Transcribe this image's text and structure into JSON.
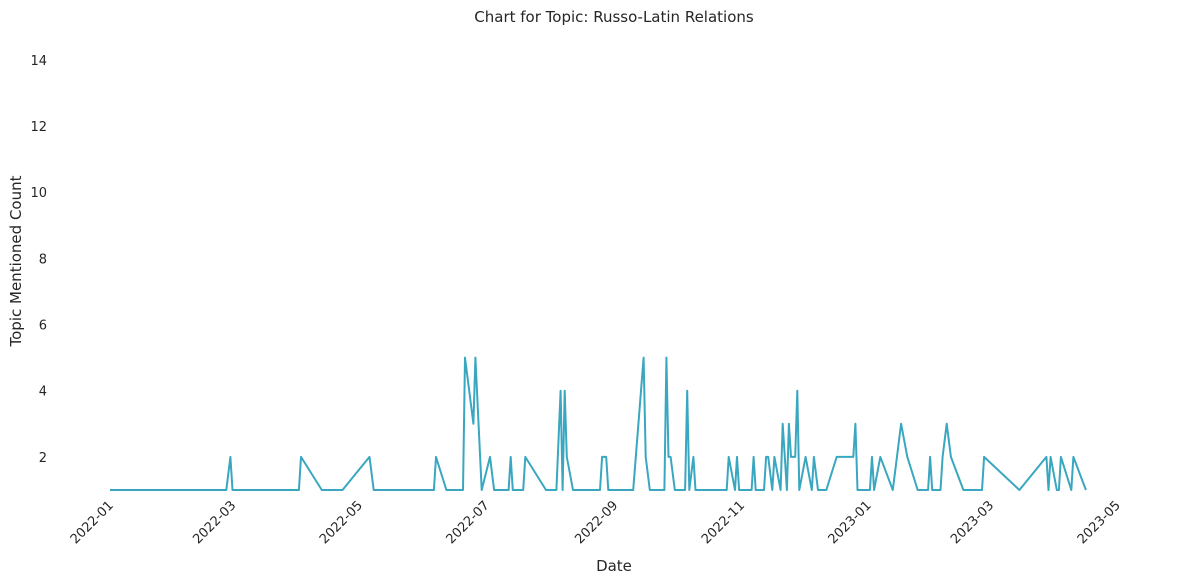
{
  "chart_data": {
    "type": "line",
    "title": "Chart for Topic: Russo-Latin Relations",
    "xlabel": "Date",
    "ylabel": "Topic Mentioned Count",
    "xlim": [
      "2022-01-01",
      "2023-05-01"
    ],
    "ylim": [
      1,
      14.6
    ],
    "grid": false,
    "x_ticks": [
      "2022-01",
      "2022-03",
      "2022-05",
      "2022-07",
      "2022-09",
      "2022-11",
      "2023-01",
      "2023-03",
      "2023-05"
    ],
    "y_ticks": [
      2,
      4,
      6,
      8,
      10,
      12,
      14
    ],
    "series": [
      {
        "color": "#3aa7c0",
        "x": [
          "2022-01-01",
          "2022-02-26",
          "2022-02-28",
          "2022-03-01",
          "2022-04-02",
          "2022-04-03",
          "2022-04-13",
          "2022-04-23",
          "2022-05-06",
          "2022-05-08",
          "2022-06-06",
          "2022-06-07",
          "2022-06-12",
          "2022-06-20",
          "2022-06-21",
          "2022-06-25",
          "2022-06-26",
          "2022-06-29",
          "2022-07-03",
          "2022-07-05",
          "2022-07-12",
          "2022-07-13",
          "2022-07-14",
          "2022-07-19",
          "2022-07-20",
          "2022-07-30",
          "2022-08-04",
          "2022-08-06",
          "2022-08-07",
          "2022-08-08",
          "2022-08-09",
          "2022-08-12",
          "2022-08-25",
          "2022-08-26",
          "2022-08-28",
          "2022-08-29",
          "2022-09-10",
          "2022-09-15",
          "2022-09-16",
          "2022-09-18",
          "2022-09-25",
          "2022-09-26",
          "2022-09-27",
          "2022-09-28",
          "2022-09-30",
          "2022-10-05",
          "2022-10-06",
          "2022-10-07",
          "2022-10-09",
          "2022-10-10",
          "2022-10-25",
          "2022-10-26",
          "2022-10-29",
          "2022-10-30",
          "2022-10-31",
          "2022-11-06",
          "2022-11-07",
          "2022-11-08",
          "2022-11-12",
          "2022-11-13",
          "2022-11-14",
          "2022-11-16",
          "2022-11-17",
          "2022-11-20",
          "2022-11-21",
          "2022-11-23",
          "2022-11-24",
          "2022-11-25",
          "2022-11-27",
          "2022-11-28",
          "2022-11-29",
          "2022-12-02",
          "2022-12-05",
          "2022-12-06",
          "2022-12-08",
          "2022-12-12",
          "2022-12-17",
          "2022-12-18",
          "2022-12-25",
          "2022-12-26",
          "2022-12-27",
          "2022-12-30",
          "2023-01-02",
          "2023-01-03",
          "2023-01-04",
          "2023-01-07",
          "2023-01-13",
          "2023-01-17",
          "2023-01-20",
          "2023-01-25",
          "2023-01-30",
          "2023-01-31",
          "2023-02-01",
          "2023-02-05",
          "2023-02-06",
          "2023-02-08",
          "2023-02-10",
          "2023-02-16",
          "2023-02-25",
          "2023-02-26",
          "2023-03-15",
          "2023-03-28",
          "2023-03-29",
          "2023-03-30",
          "2023-04-02",
          "2023-04-03",
          "2023-04-04",
          "2023-04-09",
          "2023-04-10",
          "2023-04-16"
        ],
        "y": [
          1,
          1,
          2,
          1,
          1,
          2,
          1,
          1,
          2,
          1,
          1,
          2,
          1,
          1,
          5,
          3,
          5,
          1,
          2,
          1,
          1,
          2,
          1,
          1,
          2,
          1,
          1,
          4,
          1,
          4,
          2,
          1,
          1,
          2,
          2,
          1,
          1,
          5,
          2,
          1,
          1,
          5,
          2,
          2,
          1,
          1,
          4,
          1,
          2,
          1,
          1,
          2,
          1,
          2,
          1,
          1,
          2,
          1,
          1,
          2,
          2,
          1,
          2,
          1,
          3,
          1,
          3,
          2,
          2,
          4,
          1,
          2,
          1,
          2,
          1,
          1,
          2,
          2,
          2,
          3,
          1,
          1,
          1,
          2,
          1,
          2,
          1,
          3,
          2,
          1,
          1,
          2,
          1,
          1,
          2,
          3,
          2,
          1,
          1,
          2,
          1,
          2,
          1,
          2,
          1,
          1,
          2,
          1,
          2,
          1
        ]
      }
    ]
  }
}
